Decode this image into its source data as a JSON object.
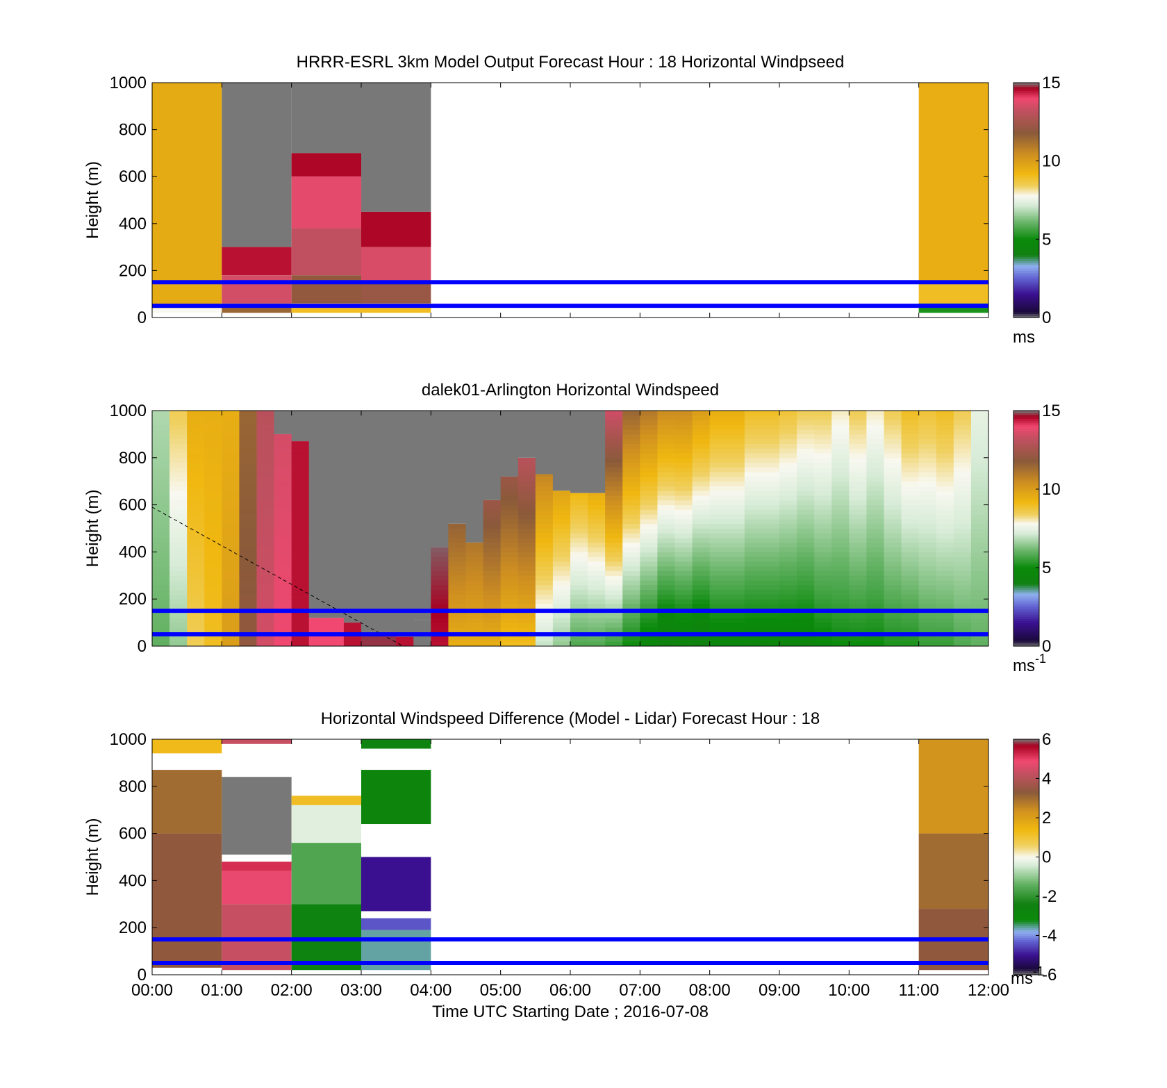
{
  "chart_data": [
    {
      "type": "heatmap",
      "title": "HRRR-ESRL 3km Model Output   Forecast Hour : 18 Horizontal Windpseed",
      "ylabel": "Height (m)",
      "xlabel": "",
      "xlim": [
        0,
        12
      ],
      "ylim": [
        0,
        1000
      ],
      "y_ticks": [
        "0",
        "200",
        "400",
        "600",
        "800",
        "1000"
      ],
      "colorbar": {
        "min": 0,
        "max": 15,
        "ticks": [
          "0",
          "5",
          "10",
          "15"
        ],
        "unit_base": "ms",
        "unit_sup": ""
      },
      "hlines_m": [
        50,
        150
      ],
      "cells": [
        {
          "t": [
            0,
            1
          ],
          "z": [
            40,
            1000
          ],
          "v": 9.6
        },
        {
          "t": [
            0,
            1
          ],
          "z": [
            20,
            40
          ],
          "v": 7.8
        },
        {
          "t": [
            1,
            2
          ],
          "z": [
            300,
            1000
          ],
          "v": 16
        },
        {
          "t": [
            1,
            2
          ],
          "z": [
            180,
            300
          ],
          "v": 14.5
        },
        {
          "t": [
            1,
            2
          ],
          "z": [
            60,
            180
          ],
          "v": 13.5
        },
        {
          "t": [
            1,
            2
          ],
          "z": [
            20,
            60
          ],
          "v": 11.5
        },
        {
          "t": [
            2,
            3
          ],
          "z": [
            700,
            1000
          ],
          "v": 16
        },
        {
          "t": [
            2,
            3
          ],
          "z": [
            600,
            700
          ],
          "v": 14.6
        },
        {
          "t": [
            2,
            3
          ],
          "z": [
            380,
            600
          ],
          "v": 13.8
        },
        {
          "t": [
            2,
            3
          ],
          "z": [
            180,
            380
          ],
          "v": 13.2
        },
        {
          "t": [
            2,
            3
          ],
          "z": [
            60,
            180
          ],
          "v": 12.0
        },
        {
          "t": [
            2,
            3
          ],
          "z": [
            20,
            60
          ],
          "v": 9.0
        },
        {
          "t": [
            3,
            4
          ],
          "z": [
            450,
            1000
          ],
          "v": 16
        },
        {
          "t": [
            3,
            4
          ],
          "z": [
            300,
            450
          ],
          "v": 14.6
        },
        {
          "t": [
            3,
            4
          ],
          "z": [
            150,
            300
          ],
          "v": 13.6
        },
        {
          "t": [
            3,
            4
          ],
          "z": [
            60,
            150
          ],
          "v": 12.2
        },
        {
          "t": [
            3,
            4
          ],
          "z": [
            20,
            60
          ],
          "v": 9.0
        },
        {
          "t": [
            11,
            12
          ],
          "z": [
            150,
            1000
          ],
          "v": 9.5
        },
        {
          "t": [
            11,
            12
          ],
          "z": [
            60,
            150
          ],
          "v": 9.0
        },
        {
          "t": [
            11,
            12
          ],
          "z": [
            20,
            60
          ],
          "v": 5.2
        }
      ]
    },
    {
      "type": "heatmap",
      "title": "dalek01-Arlington  Horizontal Windspeed",
      "ylabel": "Height (m)",
      "xlabel": "",
      "xlim": [
        0,
        12
      ],
      "ylim": [
        0,
        1000
      ],
      "y_ticks": [
        "0",
        "200",
        "400",
        "600",
        "800",
        "1000"
      ],
      "colorbar": {
        "min": 0,
        "max": 15,
        "ticks": [
          "0",
          "5",
          "10",
          "15"
        ],
        "unit_base": "ms",
        "unit_sup": "-1"
      },
      "hlines_m": [
        50,
        150
      ],
      "dashed_line": [
        [
          0,
          590
        ],
        [
          3.6,
          0
        ]
      ],
      "columns": [
        {
          "t0": 0.0,
          "t1": 0.25,
          "top": 1000,
          "v_bottom": 6.0,
          "v_top": 6.8
        },
        {
          "t0": 0.25,
          "t1": 0.5,
          "top": 1000,
          "v_bottom": 6.5,
          "v_top": 8.5
        },
        {
          "t0": 0.5,
          "t1": 0.75,
          "top": 1000,
          "v_bottom": 8.5,
          "v_top": 9.5
        },
        {
          "t0": 0.75,
          "t1": 1.0,
          "top": 1000,
          "v_bottom": 9.0,
          "v_top": 9.5
        },
        {
          "t0": 1.0,
          "t1": 1.25,
          "top": 1000,
          "v_bottom": 10.0,
          "v_top": 9.5
        },
        {
          "t0": 1.25,
          "t1": 1.5,
          "top": 1000,
          "v_bottom": 12.0,
          "v_top": 11.5
        },
        {
          "t0": 1.5,
          "t1": 1.75,
          "top": 1000,
          "v_bottom": 13.5,
          "v_top": 13.0
        },
        {
          "t0": 1.75,
          "t1": 2.0,
          "top": 900,
          "v_bottom": 14.0,
          "v_top": 13.5
        },
        {
          "t0": 2.0,
          "t1": 2.25,
          "top": 870,
          "v_bottom": 14.5,
          "v_top": 14.5
        },
        {
          "t0": 2.25,
          "t1": 2.5,
          "top": 120,
          "v_bottom": 14.0,
          "v_top": 14.0
        },
        {
          "t0": 2.5,
          "t1": 2.75,
          "top": 120,
          "v_bottom": 14.0,
          "v_top": 14.0
        },
        {
          "t0": 2.75,
          "t1": 3.0,
          "top": 100,
          "v_bottom": 14.5,
          "v_top": 14.5
        },
        {
          "t0": 3.0,
          "t1": 3.25,
          "top": 60,
          "v_bottom": 14.8,
          "v_top": 14.8
        },
        {
          "t0": 3.25,
          "t1": 3.5,
          "top": 60,
          "v_bottom": 14.8,
          "v_top": 14.8
        },
        {
          "t0": 3.5,
          "t1": 3.75,
          "top": 40,
          "v_bottom": 14.5,
          "v_top": 14.5
        },
        {
          "t0": 3.75,
          "t1": 4.0,
          "top": 110,
          "v_bottom": 15.5,
          "v_top": 15.5
        },
        {
          "t0": 4.0,
          "t1": 4.25,
          "top": 420,
          "v_bottom": 14.5,
          "v_top": 15.5
        },
        {
          "t0": 4.25,
          "t1": 4.5,
          "top": 520,
          "v_bottom": 9.5,
          "v_top": 13.5
        },
        {
          "t0": 4.5,
          "t1": 4.75,
          "top": 440,
          "v_bottom": 9.5,
          "v_top": 13.0
        },
        {
          "t0": 4.75,
          "t1": 5.0,
          "top": 620,
          "v_bottom": 9.5,
          "v_top": 14.0
        },
        {
          "t0": 5.0,
          "t1": 5.25,
          "top": 720,
          "v_bottom": 9.0,
          "v_top": 13.5
        },
        {
          "t0": 5.25,
          "t1": 5.5,
          "top": 800,
          "v_bottom": 9.0,
          "v_top": 14.0
        },
        {
          "t0": 5.5,
          "t1": 5.75,
          "top": 730,
          "v_bottom": 7.0,
          "v_top": 12.0
        },
        {
          "t0": 5.75,
          "t1": 6.0,
          "top": 660,
          "v_bottom": 6.5,
          "v_top": 11.5
        },
        {
          "t0": 6.0,
          "t1": 6.25,
          "top": 650,
          "v_bottom": 5.8,
          "v_top": 11.0
        },
        {
          "t0": 6.25,
          "t1": 6.5,
          "top": 650,
          "v_bottom": 5.8,
          "v_top": 11.5
        },
        {
          "t0": 6.5,
          "t1": 6.75,
          "top": 1000,
          "v_bottom": 5.5,
          "v_top": 13.5
        },
        {
          "t0": 6.75,
          "t1": 7.0,
          "top": 1000,
          "v_bottom": 5.0,
          "v_top": 11.5
        },
        {
          "t0": 7.0,
          "t1": 7.25,
          "top": 1000,
          "v_bottom": 4.5,
          "v_top": 11.0
        },
        {
          "t0": 7.25,
          "t1": 7.5,
          "top": 1000,
          "v_bottom": 4.0,
          "v_top": 10.5
        },
        {
          "t0": 7.5,
          "t1": 7.75,
          "top": 1000,
          "v_bottom": 4.2,
          "v_top": 10.5
        },
        {
          "t0": 7.75,
          "t1": 8.0,
          "top": 1000,
          "v_bottom": 4.0,
          "v_top": 10.0
        },
        {
          "t0": 8.0,
          "t1": 8.25,
          "top": 1000,
          "v_bottom": 4.5,
          "v_top": 9.5
        },
        {
          "t0": 8.25,
          "t1": 8.5,
          "top": 1000,
          "v_bottom": 4.5,
          "v_top": 9.5
        },
        {
          "t0": 8.5,
          "t1": 8.75,
          "top": 1000,
          "v_bottom": 4.5,
          "v_top": 9.0
        },
        {
          "t0": 8.75,
          "t1": 9.0,
          "top": 1000,
          "v_bottom": 4.5,
          "v_top": 9.0
        },
        {
          "t0": 9.0,
          "t1": 9.25,
          "top": 1000,
          "v_bottom": 4.5,
          "v_top": 8.8
        },
        {
          "t0": 9.25,
          "t1": 9.5,
          "top": 1000,
          "v_bottom": 4.5,
          "v_top": 8.5
        },
        {
          "t0": 9.5,
          "t1": 9.75,
          "top": 1000,
          "v_bottom": 4.8,
          "v_top": 8.5
        },
        {
          "t0": 9.75,
          "t1": 10.0,
          "top": 1000,
          "v_bottom": 5.0,
          "v_top": 8.0
        },
        {
          "t0": 10.0,
          "t1": 10.25,
          "top": 1000,
          "v_bottom": 5.0,
          "v_top": 8.5
        },
        {
          "t0": 10.25,
          "t1": 10.5,
          "top": 1000,
          "v_bottom": 5.0,
          "v_top": 8.0
        },
        {
          "t0": 10.5,
          "t1": 10.75,
          "top": 1000,
          "v_bottom": 5.2,
          "v_top": 8.5
        },
        {
          "t0": 10.75,
          "t1": 11.0,
          "top": 1000,
          "v_bottom": 5.2,
          "v_top": 9.0
        },
        {
          "t0": 11.0,
          "t1": 11.25,
          "top": 1000,
          "v_bottom": 5.5,
          "v_top": 8.8
        },
        {
          "t0": 11.25,
          "t1": 11.5,
          "top": 1000,
          "v_bottom": 5.5,
          "v_top": 9.0
        },
        {
          "t0": 11.5,
          "t1": 11.75,
          "top": 1000,
          "v_bottom": 5.8,
          "v_top": 8.5
        },
        {
          "t0": 11.75,
          "t1": 12.0,
          "top": 1000,
          "v_bottom": 6.0,
          "v_top": 7.5
        }
      ]
    },
    {
      "type": "heatmap",
      "title": "Horizontal Windspeed Difference (Model - Lidar) Forecast Hour : 18",
      "ylabel": "Height (m)",
      "xlabel": "Time UTC  Starting Date ; 2016-07-08",
      "xlim": [
        0,
        12
      ],
      "ylim": [
        0,
        1000
      ],
      "x_ticks": [
        "00:00",
        "01:00",
        "02:00",
        "03:00",
        "04:00",
        "05:00",
        "06:00",
        "07:00",
        "08:00",
        "09:00",
        "10:00",
        "11:00",
        "12:00"
      ],
      "y_ticks": [
        "0",
        "200",
        "400",
        "600",
        "800",
        "1000"
      ],
      "colorbar": {
        "min": -6,
        "max": 6,
        "ticks": [
          "-6",
          "-4",
          "-2",
          "0",
          "2",
          "4",
          "6"
        ],
        "unit_base": "ms",
        "unit_sup": "-1"
      },
      "hlines_m": [
        50,
        150
      ],
      "cells": [
        {
          "t": [
            0,
            1
          ],
          "z": [
            940,
            1000
          ],
          "v": 1.3
        },
        {
          "t": [
            0,
            1
          ],
          "z": [
            600,
            870
          ],
          "v": 3.0
        },
        {
          "t": [
            0,
            1
          ],
          "z": [
            30,
            600
          ],
          "v": 3.4
        },
        {
          "t": [
            1,
            2
          ],
          "z": [
            980,
            1000
          ],
          "v": 4.3
        },
        {
          "t": [
            1,
            2
          ],
          "z": [
            510,
            840
          ],
          "v": 7
        },
        {
          "t": [
            1,
            2
          ],
          "z": [
            440,
            480
          ],
          "v": 5.2
        },
        {
          "t": [
            1,
            2
          ],
          "z": [
            300,
            440
          ],
          "v": 4.8
        },
        {
          "t": [
            1,
            2
          ],
          "z": [
            20,
            300
          ],
          "v": 4.3
        },
        {
          "t": [
            2,
            3
          ],
          "z": [
            720,
            760
          ],
          "v": 1.2
        },
        {
          "t": [
            2,
            3
          ],
          "z": [
            560,
            720
          ],
          "v": -0.3
        },
        {
          "t": [
            2,
            3
          ],
          "z": [
            300,
            560
          ],
          "v": -1.6
        },
        {
          "t": [
            2,
            3
          ],
          "z": [
            20,
            300
          ],
          "v": -2.6
        },
        {
          "t": [
            3,
            4
          ],
          "z": [
            960,
            1000
          ],
          "v": -2.6
        },
        {
          "t": [
            3,
            4
          ],
          "z": [
            640,
            870
          ],
          "v": -2.8
        },
        {
          "t": [
            3,
            4
          ],
          "z": [
            270,
            500
          ],
          "v": -5.0
        },
        {
          "t": [
            3,
            4
          ],
          "z": [
            190,
            240
          ],
          "v": -4.4
        },
        {
          "t": [
            3,
            4
          ],
          "z": [
            20,
            190
          ],
          "v": -3.6
        },
        {
          "t": [
            11,
            12
          ],
          "z": [
            600,
            1000
          ],
          "v": 2.3
        },
        {
          "t": [
            11,
            12
          ],
          "z": [
            280,
            600
          ],
          "v": 3.0
        },
        {
          "t": [
            11,
            12
          ],
          "z": [
            20,
            280
          ],
          "v": 3.4
        }
      ]
    }
  ]
}
